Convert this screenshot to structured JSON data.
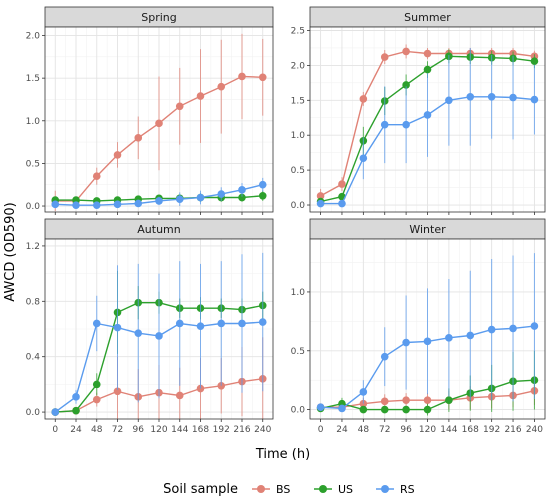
{
  "chart_data": {
    "type": "line",
    "xlabel": "Time (h)",
    "ylabel": "AWCD (OD590)",
    "x": [
      0,
      24,
      48,
      72,
      96,
      120,
      144,
      168,
      192,
      216,
      240
    ],
    "x_ticks": [
      "0",
      "24",
      "48",
      "72",
      "96",
      "120",
      "144",
      "168",
      "192",
      "216",
      "240"
    ],
    "legend": {
      "title": "Soil sample",
      "position": "bottom",
      "entries": [
        {
          "name": "BS",
          "color": "#E08276"
        },
        {
          "name": "US",
          "color": "#2CA02C"
        },
        {
          "name": "RS",
          "color": "#5A9BEE"
        }
      ]
    },
    "panels": [
      {
        "title": "Spring",
        "ylim": [
          -0.07,
          2.1
        ],
        "y_ticks": [
          0.0,
          0.5,
          1.0,
          1.5,
          2.0
        ],
        "y_tick_labels": [
          "0.0",
          "0.5",
          "1.0",
          "1.5",
          "2.0"
        ],
        "series": [
          {
            "name": "BS",
            "values": [
              0.06,
              0.06,
              0.35,
              0.6,
              0.8,
              0.97,
              1.17,
              1.29,
              1.4,
              1.52,
              1.51
            ],
            "err": [
              0.12,
              0.05,
              0.1,
              0.15,
              0.25,
              0.55,
              0.45,
              0.55,
              0.55,
              0.5,
              0.45
            ]
          },
          {
            "name": "US",
            "values": [
              0.07,
              0.07,
              0.06,
              0.07,
              0.08,
              0.09,
              0.09,
              0.1,
              0.1,
              0.1,
              0.12
            ],
            "err": [
              0.03,
              0.03,
              0.03,
              0.04,
              0.04,
              0.04,
              0.04,
              0.05,
              0.05,
              0.05,
              0.06
            ]
          },
          {
            "name": "RS",
            "values": [
              0.02,
              0.01,
              0.01,
              0.02,
              0.03,
              0.06,
              0.08,
              0.1,
              0.14,
              0.19,
              0.25
            ],
            "err": [
              0.02,
              0.02,
              0.02,
              0.02,
              0.03,
              0.05,
              0.08,
              0.08,
              0.08,
              0.08,
              0.08
            ]
          }
        ]
      },
      {
        "title": "Summer",
        "ylim": [
          -0.1,
          2.55
        ],
        "y_ticks": [
          0.0,
          0.5,
          1.0,
          1.5,
          2.0,
          2.5
        ],
        "y_tick_labels": [
          "0.0",
          "0.5",
          "1.0",
          "1.5",
          "2.0",
          "2.5"
        ],
        "series": [
          {
            "name": "BS",
            "values": [
              0.13,
              0.3,
              1.52,
              2.12,
              2.2,
              2.17,
              2.17,
              2.17,
              2.17,
              2.17,
              2.13
            ],
            "err": [
              0.1,
              0.1,
              0.1,
              0.1,
              0.1,
              0.08,
              0.08,
              0.08,
              0.08,
              0.08,
              0.08
            ]
          },
          {
            "name": "US",
            "values": [
              0.05,
              0.12,
              0.92,
              1.49,
              1.72,
              1.94,
              2.13,
              2.12,
              2.11,
              2.1,
              2.06
            ],
            "err": [
              0.05,
              0.05,
              0.2,
              0.2,
              0.15,
              0.12,
              0.1,
              0.1,
              0.1,
              0.1,
              0.1
            ]
          },
          {
            "name": "RS",
            "values": [
              0.02,
              0.02,
              0.67,
              1.15,
              1.15,
              1.29,
              1.5,
              1.55,
              1.55,
              1.54,
              1.51
            ],
            "err": [
              0.03,
              0.03,
              0.3,
              0.55,
              0.55,
              0.6,
              0.65,
              0.7,
              0.6,
              0.6,
              0.5
            ]
          }
        ]
      },
      {
        "title": "Autumn",
        "ylim": [
          -0.05,
          1.25
        ],
        "y_ticks": [
          0.0,
          0.4,
          0.8,
          1.2
        ],
        "y_tick_labels": [
          "0.0",
          "0.4",
          "0.8",
          "1.2"
        ],
        "series": [
          {
            "name": "BS",
            "values": [
              0.0,
              0.01,
              0.09,
              0.15,
              0.11,
              0.14,
              0.12,
              0.17,
              0.19,
              0.22,
              0.24
            ],
            "err": [
              0.01,
              0.01,
              0.05,
              0.25,
              0.2,
              0.2,
              0.2,
              0.22,
              0.2,
              0.25,
              0.3
            ]
          },
          {
            "name": "US",
            "values": [
              0.0,
              0.01,
              0.2,
              0.72,
              0.79,
              0.79,
              0.75,
              0.75,
              0.75,
              0.74,
              0.77
            ],
            "err": [
              0.01,
              0.01,
              0.08,
              0.3,
              0.12,
              0.08,
              0.07,
              0.08,
              0.07,
              0.08,
              0.1
            ]
          },
          {
            "name": "RS",
            "values": [
              0.0,
              0.11,
              0.64,
              0.61,
              0.57,
              0.55,
              0.64,
              0.62,
              0.64,
              0.64,
              0.65
            ],
            "err": [
              0.01,
              0.05,
              0.2,
              0.45,
              0.5,
              0.45,
              0.45,
              0.45,
              0.45,
              0.5,
              0.5
            ]
          }
        ]
      },
      {
        "title": "Winter",
        "ylim": [
          -0.08,
          1.45
        ],
        "y_ticks": [
          0.0,
          0.5,
          1.0
        ],
        "y_tick_labels": [
          "0.0",
          "0.5",
          "1.0"
        ],
        "series": [
          {
            "name": "BS",
            "values": [
              0.02,
              0.02,
              0.05,
              0.07,
              0.08,
              0.08,
              0.08,
              0.1,
              0.11,
              0.12,
              0.16
            ],
            "err": [
              0.02,
              0.04,
              0.05,
              0.06,
              0.06,
              0.06,
              0.08,
              0.1,
              0.1,
              0.1,
              0.12
            ]
          },
          {
            "name": "US",
            "values": [
              0.01,
              0.05,
              0.0,
              0.0,
              0.0,
              0.0,
              0.08,
              0.14,
              0.18,
              0.24,
              0.25
            ],
            "err": [
              0.02,
              0.05,
              0.03,
              0.03,
              0.03,
              0.05,
              0.1,
              0.15,
              0.2,
              0.25,
              0.25
            ]
          },
          {
            "name": "RS",
            "values": [
              0.02,
              0.01,
              0.15,
              0.45,
              0.57,
              0.58,
              0.61,
              0.63,
              0.68,
              0.69,
              0.71
            ],
            "err": [
              0.02,
              0.03,
              0.1,
              0.25,
              0.4,
              0.45,
              0.5,
              0.55,
              0.6,
              0.62,
              0.62
            ]
          }
        ]
      }
    ]
  }
}
